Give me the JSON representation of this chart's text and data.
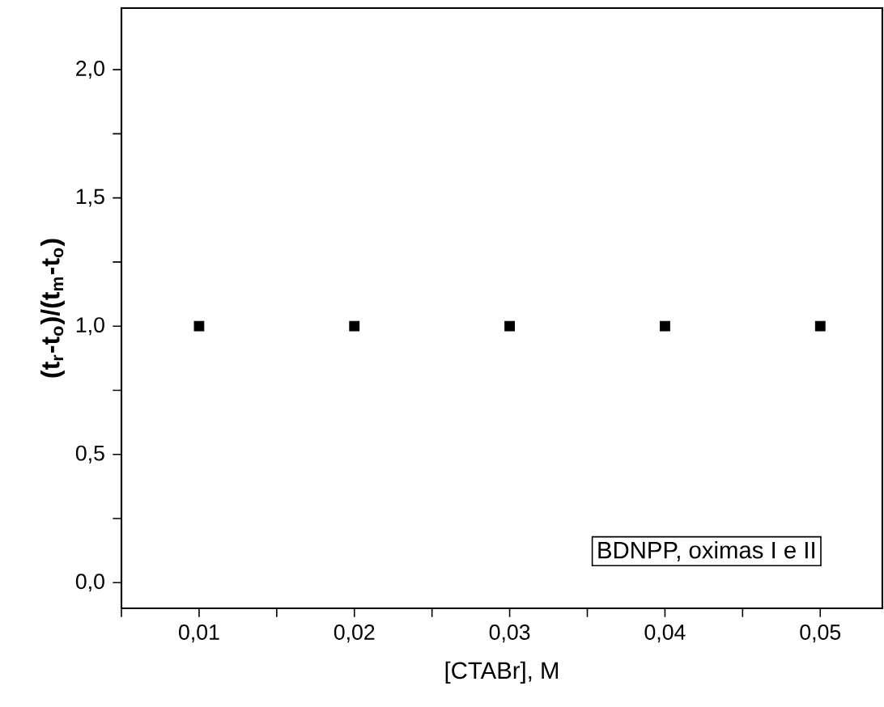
{
  "chart_data": {
    "type": "scatter",
    "xlabel": "[CTABr], M",
    "ylabel": "(t$_{r}$-t$_{o}$)/(t$_{m}$-t$_{o}$)",
    "x": [
      0.01,
      0.02,
      0.03,
      0.04,
      0.05
    ],
    "series": [
      {
        "color": "#000000",
        "values": [
          1.0,
          1.0,
          1.0,
          1.0,
          1.0
        ]
      }
    ],
    "marker": "square",
    "xlim": [
      0.005,
      0.054
    ],
    "ylim": [
      -0.1,
      2.24
    ],
    "xticks": [
      {
        "value": 0.005,
        "label": null
      },
      {
        "value": 0.01,
        "label": "0,01"
      },
      {
        "value": 0.015,
        "label": null
      },
      {
        "value": 0.02,
        "label": "0,02"
      },
      {
        "value": 0.025,
        "label": null
      },
      {
        "value": 0.03,
        "label": "0,03"
      },
      {
        "value": 0.035,
        "label": null
      },
      {
        "value": 0.04,
        "label": "0,04"
      },
      {
        "value": 0.045,
        "label": null
      },
      {
        "value": 0.05,
        "label": "0,05"
      }
    ],
    "yticks": [
      {
        "value": 0,
        "label": "0,0"
      },
      {
        "value": 0.25,
        "label": null
      },
      {
        "value": 0.5,
        "label": "0,5"
      },
      {
        "value": 0.75,
        "label": null
      },
      {
        "value": 1.0,
        "label": "1,0"
      },
      {
        "value": 1.25,
        "label": null
      },
      {
        "value": 1.5,
        "label": "1,5"
      },
      {
        "value": 1.75,
        "label": null
      },
      {
        "value": 2.0,
        "label": "2,0"
      }
    ],
    "annotations": [
      "BDNPP, oximas I e II"
    ]
  }
}
